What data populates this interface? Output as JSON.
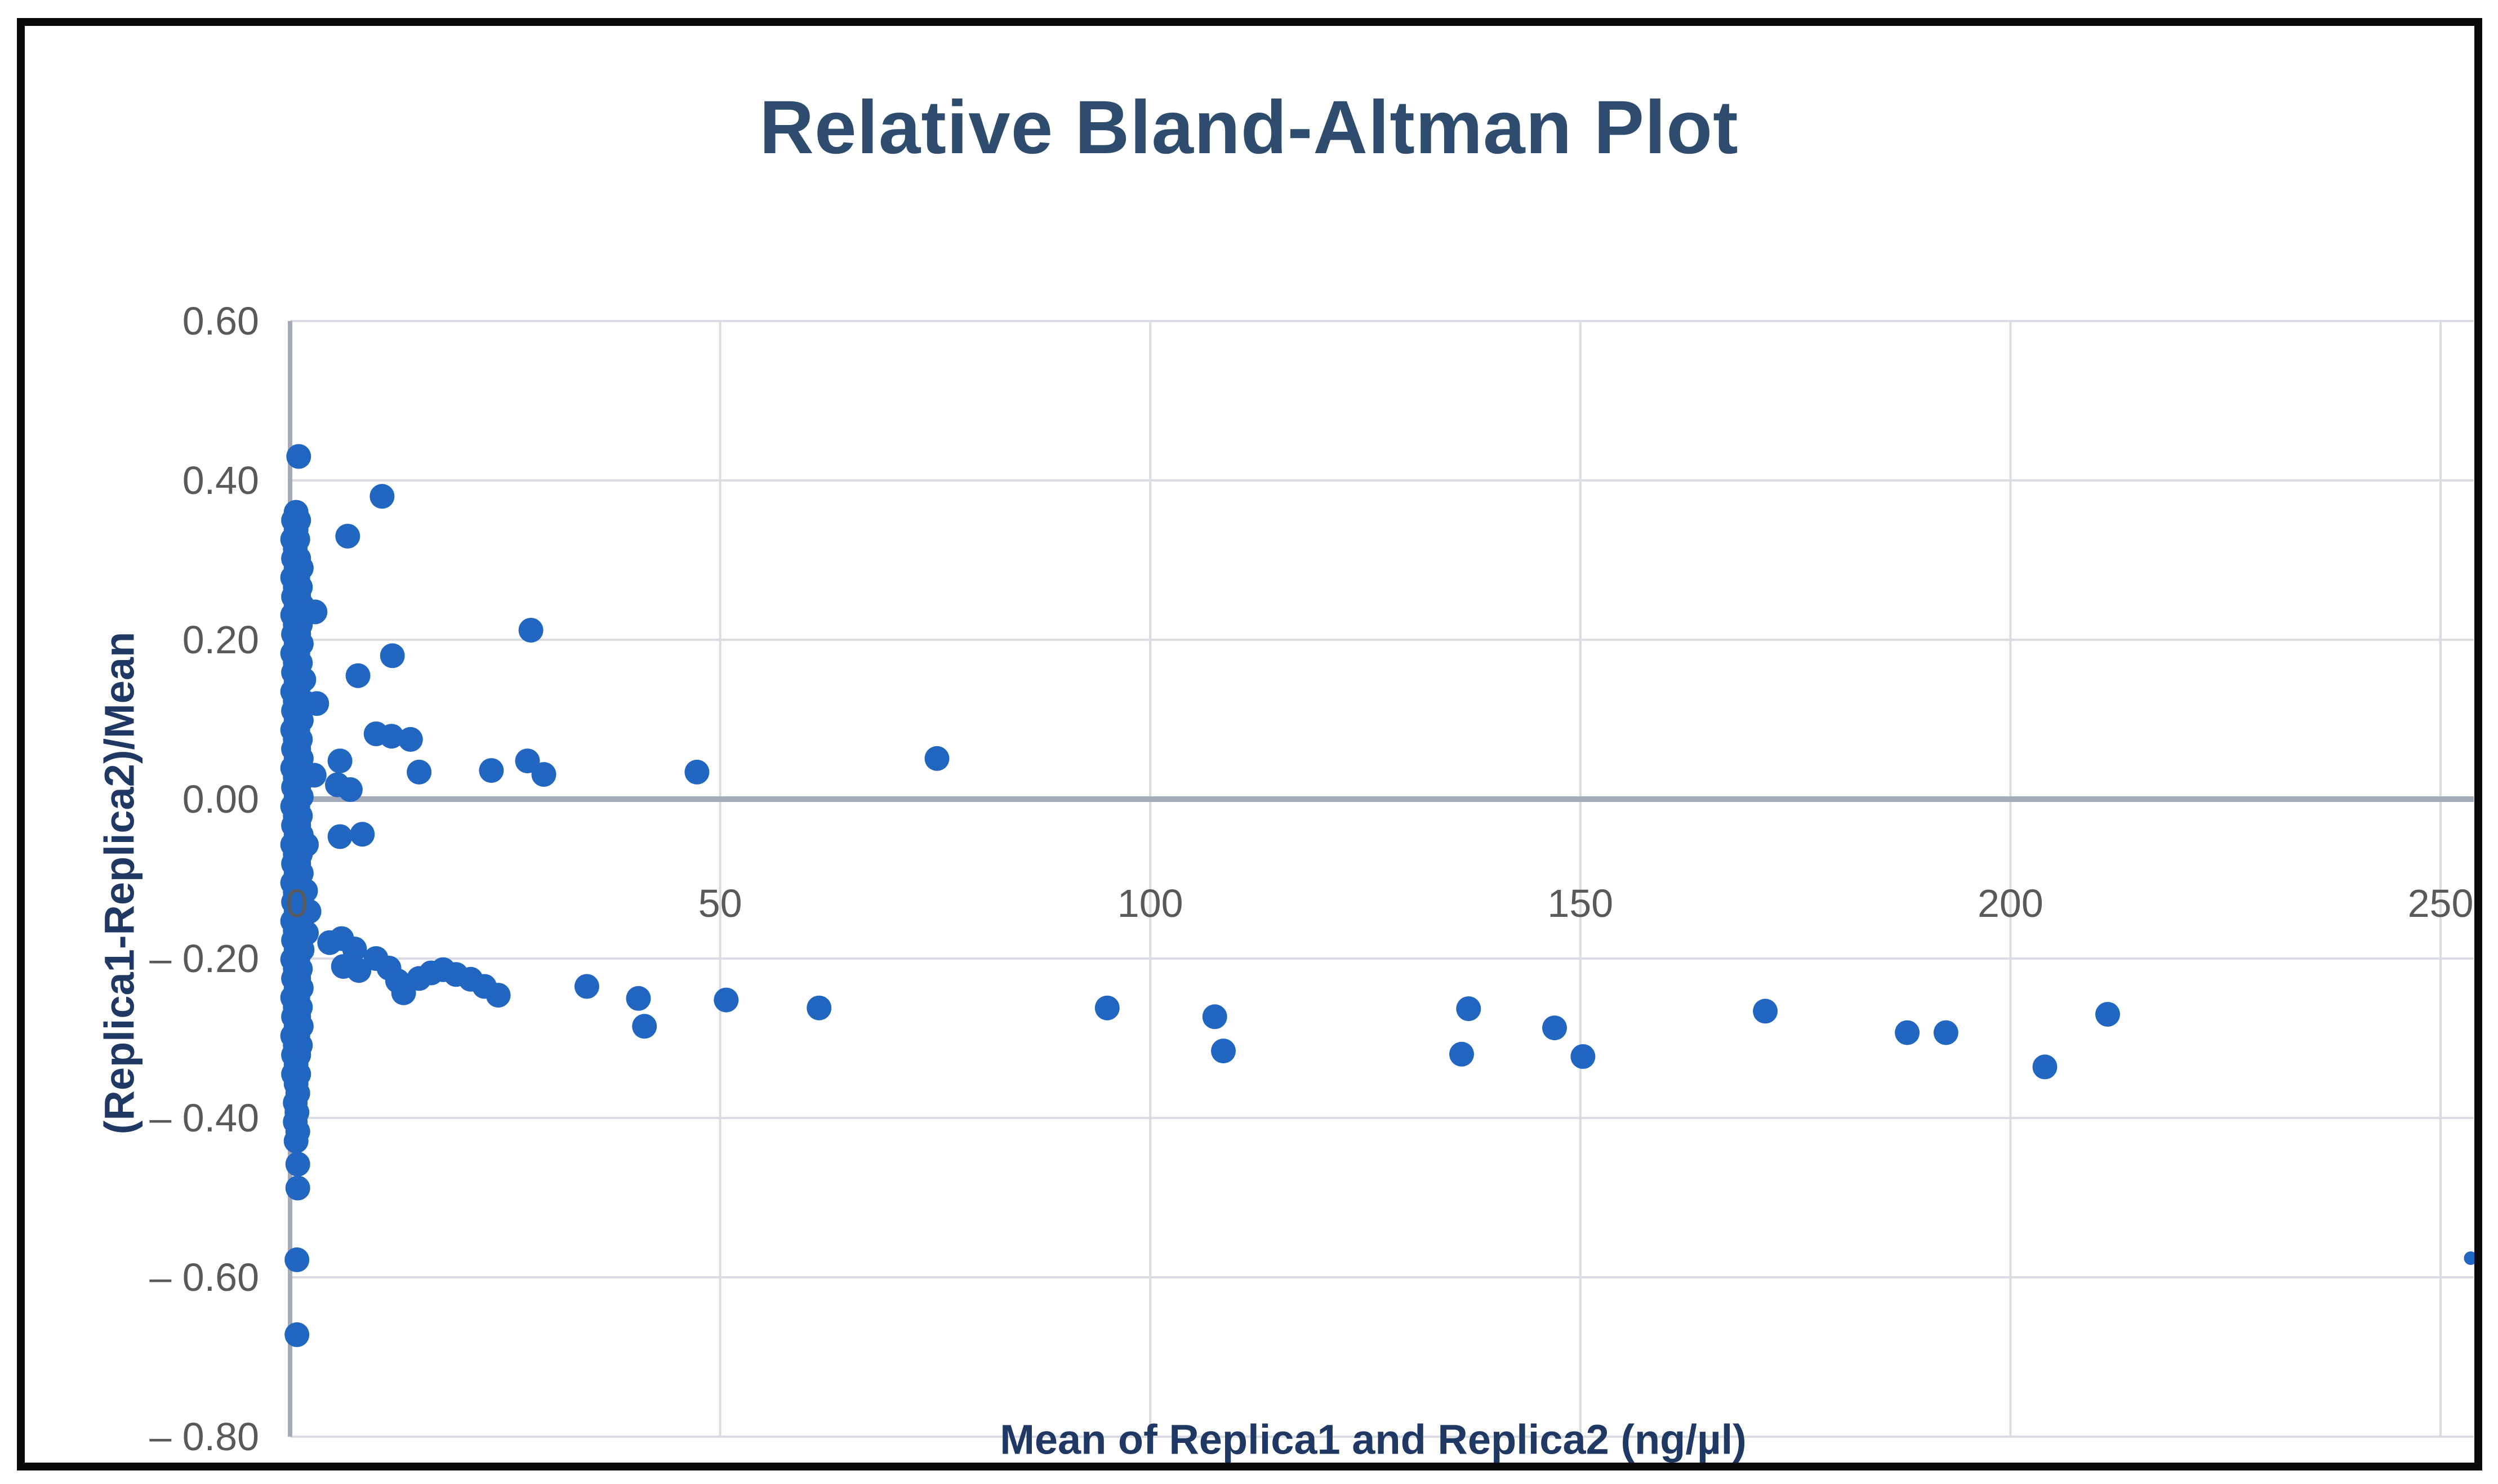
{
  "chart_data": {
    "type": "scatter",
    "title": "Relative Bland-Altman Plot",
    "xlabel": "Mean of Replica1 and Replica2 (ng/µl)",
    "ylabel": "(Replica1-Replica2)/Mean",
    "xlim": [
      0,
      250
    ],
    "ylim": [
      -0.8,
      0.6
    ],
    "grid": true,
    "legend": false,
    "x_ticks": [
      {
        "label": "0",
        "value": 0
      },
      {
        "label": "50",
        "value": 50
      },
      {
        "label": "100",
        "value": 100
      },
      {
        "label": "150",
        "value": 150
      },
      {
        "label": "200",
        "value": 200
      },
      {
        "label": "250",
        "value": 250
      }
    ],
    "y_ticks": [
      {
        "label": "0.60",
        "value": 0.6
      },
      {
        "label": "0.40",
        "value": 0.4
      },
      {
        "label": "0.20",
        "value": 0.2
      },
      {
        "label": "0.00",
        "value": 0.0
      },
      {
        "label": "– 0.20",
        "value": -0.2
      },
      {
        "label": "– 0.40",
        "value": -0.4
      },
      {
        "label": "– 0.60",
        "value": -0.6
      },
      {
        "label": "– 0.80",
        "value": -0.8
      }
    ],
    "series": [
      {
        "name": "(Replica1-Replica2)/Mean",
        "points": [
          [
            1.0,
            0.43
          ],
          [
            10.7,
            0.38
          ],
          [
            6.7,
            0.33
          ],
          [
            11.9,
            0.18
          ],
          [
            7.9,
            0.155
          ],
          [
            28,
            0.212
          ],
          [
            5.8,
            0.048
          ],
          [
            10,
            0.082
          ],
          [
            11.8,
            0.079
          ],
          [
            14,
            0.075
          ],
          [
            15,
            0.034
          ],
          [
            23.4,
            0.036
          ],
          [
            27.6,
            0.048
          ],
          [
            29.5,
            0.031
          ],
          [
            47.3,
            0.034
          ],
          [
            75.2,
            0.051
          ],
          [
            5.8,
            -0.047
          ],
          [
            8.4,
            -0.044
          ],
          [
            4.6,
            -0.18
          ],
          [
            6.0,
            -0.175
          ],
          [
            7.5,
            -0.188
          ],
          [
            6.2,
            -0.21
          ],
          [
            8.0,
            -0.215
          ],
          [
            10.0,
            -0.2
          ],
          [
            11.5,
            -0.212
          ],
          [
            12.5,
            -0.228
          ],
          [
            13.2,
            -0.243
          ],
          [
            15.0,
            -0.225
          ],
          [
            16.4,
            -0.218
          ],
          [
            17.8,
            -0.214
          ],
          [
            19.3,
            -0.22
          ],
          [
            21.0,
            -0.226
          ],
          [
            22.6,
            -0.235
          ],
          [
            24.2,
            -0.246
          ],
          [
            34.5,
            -0.235
          ],
          [
            40.5,
            -0.25
          ],
          [
            41.2,
            -0.285
          ],
          [
            50.7,
            -0.252
          ],
          [
            61.5,
            -0.262
          ],
          [
            95,
            -0.262
          ],
          [
            107.5,
            -0.273
          ],
          [
            108.5,
            -0.316
          ],
          [
            137,
            -0.263
          ],
          [
            136.2,
            -0.32
          ],
          [
            147,
            -0.287
          ],
          [
            150.3,
            -0.323
          ],
          [
            171.5,
            -0.266
          ],
          [
            188,
            -0.293
          ],
          [
            192.5,
            -0.293
          ],
          [
            204,
            -0.336
          ],
          [
            211.3,
            -0.27
          ],
          [
            0.7,
            0.36
          ],
          [
            0.4,
            0.35
          ],
          [
            1.0,
            0.35
          ],
          [
            0.7,
            0.338
          ],
          [
            0.3,
            0.326
          ],
          [
            0.9,
            0.326
          ],
          [
            0.6,
            0.314
          ],
          [
            0.4,
            0.302
          ],
          [
            1.0,
            0.302
          ],
          [
            0.7,
            0.29
          ],
          [
            1.3,
            0.29
          ],
          [
            0.3,
            0.278
          ],
          [
            0.9,
            0.278
          ],
          [
            0.6,
            0.266
          ],
          [
            1.2,
            0.266
          ],
          [
            0.4,
            0.254
          ],
          [
            1.0,
            0.254
          ],
          [
            0.7,
            0.243
          ],
          [
            1.4,
            0.243
          ],
          [
            1.9,
            0.235
          ],
          [
            2.9,
            0.235
          ],
          [
            0.3,
            0.231
          ],
          [
            0.9,
            0.231
          ],
          [
            0.6,
            0.219
          ],
          [
            1.2,
            0.219
          ],
          [
            0.4,
            0.207
          ],
          [
            1.0,
            0.207
          ],
          [
            0.7,
            0.195
          ],
          [
            1.3,
            0.195
          ],
          [
            0.3,
            0.183
          ],
          [
            0.9,
            0.183
          ],
          [
            0.6,
            0.171
          ],
          [
            1.2,
            0.171
          ],
          [
            0.4,
            0.159
          ],
          [
            1.0,
            0.159
          ],
          [
            1.6,
            0.15
          ],
          [
            0.7,
            0.147
          ],
          [
            1.3,
            0.147
          ],
          [
            0.3,
            0.135
          ],
          [
            0.9,
            0.135
          ],
          [
            0.6,
            0.123
          ],
          [
            1.2,
            0.123
          ],
          [
            2.0,
            0.12
          ],
          [
            3.1,
            0.12
          ],
          [
            0.4,
            0.111
          ],
          [
            1.0,
            0.111
          ],
          [
            0.7,
            0.099
          ],
          [
            1.3,
            0.099
          ],
          [
            0.3,
            0.087
          ],
          [
            0.9,
            0.087
          ],
          [
            0.6,
            0.075
          ],
          [
            1.2,
            0.075
          ],
          [
            0.4,
            0.063
          ],
          [
            1.0,
            0.063
          ],
          [
            0.7,
            0.051
          ],
          [
            1.3,
            0.051
          ],
          [
            0.3,
            0.039
          ],
          [
            0.9,
            0.039
          ],
          [
            1.8,
            0.03
          ],
          [
            2.8,
            0.03
          ],
          [
            0.6,
            0.027
          ],
          [
            1.2,
            0.027
          ],
          [
            0.4,
            0.015
          ],
          [
            1.0,
            0.015
          ],
          [
            5.5,
            0.018
          ],
          [
            7.0,
            0.012
          ],
          [
            0.7,
            0.003
          ],
          [
            1.3,
            0.003
          ],
          [
            0.3,
            -0.009
          ],
          [
            0.9,
            -0.009
          ],
          [
            0.6,
            -0.021
          ],
          [
            1.2,
            -0.021
          ],
          [
            0.4,
            -0.033
          ],
          [
            1.0,
            -0.033
          ],
          [
            0.7,
            -0.045
          ],
          [
            1.3,
            -0.045
          ],
          [
            0.3,
            -0.057
          ],
          [
            0.9,
            -0.057
          ],
          [
            1.9,
            -0.057
          ],
          [
            0.6,
            -0.069
          ],
          [
            1.2,
            -0.069
          ],
          [
            0.4,
            -0.081
          ],
          [
            1.0,
            -0.081
          ],
          [
            0.7,
            -0.093
          ],
          [
            1.3,
            -0.093
          ],
          [
            0.3,
            -0.105
          ],
          [
            0.9,
            -0.105
          ],
          [
            1.8,
            -0.115
          ],
          [
            0.6,
            -0.117
          ],
          [
            1.2,
            -0.117
          ],
          [
            0.4,
            -0.129
          ],
          [
            1.0,
            -0.129
          ],
          [
            0.7,
            -0.141
          ],
          [
            1.3,
            -0.141
          ],
          [
            2.2,
            -0.141
          ],
          [
            0.3,
            -0.153
          ],
          [
            0.9,
            -0.153
          ],
          [
            0.6,
            -0.165
          ],
          [
            1.2,
            -0.165
          ],
          [
            1.9,
            -0.168
          ],
          [
            0.4,
            -0.177
          ],
          [
            1.0,
            -0.177
          ],
          [
            0.7,
            -0.189
          ],
          [
            1.4,
            -0.189
          ],
          [
            0.3,
            -0.201
          ],
          [
            0.9,
            -0.201
          ],
          [
            0.6,
            -0.213
          ],
          [
            1.2,
            -0.213
          ],
          [
            0.4,
            -0.225
          ],
          [
            1.0,
            -0.225
          ],
          [
            0.7,
            -0.237
          ],
          [
            1.3,
            -0.237
          ],
          [
            0.3,
            -0.249
          ],
          [
            0.9,
            -0.249
          ],
          [
            0.6,
            -0.261
          ],
          [
            1.2,
            -0.261
          ],
          [
            0.4,
            -0.273
          ],
          [
            1.0,
            -0.273
          ],
          [
            0.7,
            -0.285
          ],
          [
            1.3,
            -0.285
          ],
          [
            0.3,
            -0.297
          ],
          [
            0.9,
            -0.297
          ],
          [
            0.6,
            -0.309
          ],
          [
            1.2,
            -0.309
          ],
          [
            0.4,
            -0.321
          ],
          [
            1.0,
            -0.321
          ],
          [
            0.7,
            -0.333
          ],
          [
            0.4,
            -0.345
          ],
          [
            1.0,
            -0.345
          ],
          [
            0.7,
            -0.357
          ],
          [
            0.9,
            -0.369
          ],
          [
            0.6,
            -0.381
          ],
          [
            0.8,
            -0.393
          ],
          [
            0.6,
            -0.405
          ],
          [
            0.9,
            -0.417
          ],
          [
            0.7,
            -0.429
          ],
          [
            0.9,
            -0.458
          ],
          [
            0.9,
            -0.488
          ],
          [
            0.8,
            -0.578
          ],
          [
            0.8,
            -0.672
          ]
        ]
      }
    ],
    "stray_edge_point": {
      "x": 253.5,
      "y": -0.576
    }
  },
  "colors": {
    "marker": "#2166c0",
    "title_text": "#2e4d6e",
    "axis_title_text": "#1f3864",
    "tick_text": "#595959",
    "gridline": "#d9dde3",
    "axis_line": "#a3abb9",
    "border": "#0a0a0a",
    "background": "#ffffff"
  }
}
